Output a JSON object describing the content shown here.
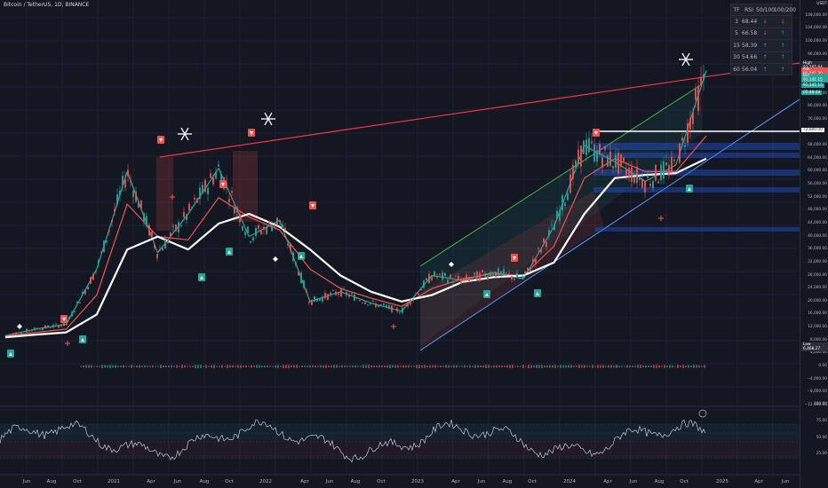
{
  "header": {
    "title": "Bitcoin / TetherUS, 1D, BINANCE"
  },
  "rsi_table": {
    "headers": [
      "TF",
      "RSI",
      "50/100",
      "100/200"
    ],
    "rows": [
      {
        "tf": "3",
        "rsi": "68.44",
        "a": "↓",
        "b": "↓"
      },
      {
        "tf": "5",
        "rsi": "66.58",
        "a": "↓",
        "b": "↑"
      },
      {
        "tf": "15",
        "rsi": "58.39",
        "a": "↑",
        "b": "↑"
      },
      {
        "tf": "30",
        "rsi": "54.66",
        "a": "↑",
        "b": "↑"
      },
      {
        "tf": "60",
        "rsi": "56.04",
        "a": "↑",
        "b": "↑"
      }
    ],
    "colors": {
      "up": "#26a69a",
      "down": "#ef5350"
    }
  },
  "price_axis": {
    "currency": "USDT",
    "labels": [
      "108,000.00",
      "104,000.00",
      "100,000.00",
      "96,000.00",
      "88,000.00",
      "84,000.00",
      "80,000.00",
      "76,000.00",
      "68,000.00",
      "64,000.00",
      "60,000.00",
      "56,000.00",
      "52,000.00",
      "48,000.00",
      "44,000.00",
      "40,000.00",
      "36,000.00",
      "32,000.00",
      "28,000.00",
      "24,000.00",
      "20,000.00",
      "16,000.00",
      "12,000.00",
      "8,000.00",
      "4,000.00",
      "0.00",
      "−4,000.00",
      "−8,000.00",
      "−12,000.00"
    ],
    "tags": {
      "high_label": "High",
      "high": "93,265.64",
      "ask_label": "Ask",
      "ask": "91,141.30",
      "bid_label": "Bid",
      "bid": "91,141.15",
      "last": "91,141.15",
      "last_sub": "05:48:44",
      "level": "72,800.00",
      "low_label": "Low",
      "low": "6,468.27"
    }
  },
  "rsi_axis": {
    "labels": [
      "100.00",
      "75.00",
      "50.00",
      "25.00"
    ]
  },
  "time_axis": {
    "labels": [
      "Jun",
      "Aug",
      "Oct",
      "2021",
      "Apr",
      "Jun",
      "Aug",
      "Oct",
      "2022",
      "Apr",
      "Jun",
      "Aug",
      "Oct",
      "2023",
      "Apr",
      "Jun",
      "Aug",
      "Oct",
      "2024",
      "Apr",
      "Jun",
      "Aug",
      "Oct",
      "2025",
      "Apr",
      "Jun"
    ]
  },
  "colors": {
    "bull": "#26a69a",
    "bear": "#ef5350",
    "ma_white": "#ffffff",
    "background": "#131722",
    "trend": "#f23645"
  },
  "chart_data": {
    "type": "line",
    "title": "Bitcoin / TetherUS, 1D, BINANCE",
    "x": [
      "Jun 2020",
      "Aug 2020",
      "Oct 2020",
      "Jan 2021",
      "Apr 2021",
      "Jun 2021",
      "Aug 2021",
      "Oct 2021",
      "Jan 2022",
      "Apr 2022",
      "Jun 2022",
      "Aug 2022",
      "Oct 2022",
      "Jan 2023",
      "Apr 2023",
      "Jun 2023",
      "Aug 2023",
      "Oct 2023",
      "Jan 2024",
      "Apr 2024",
      "Jun 2024",
      "Aug 2024",
      "Oct 2024",
      "Nov 2024"
    ],
    "series": [
      {
        "values": [
          9500,
          11500,
          13000,
          30000,
          60000,
          35000,
          47000,
          61000,
          40000,
          45000,
          20000,
          23000,
          19500,
          17000,
          28000,
          26500,
          29000,
          27000,
          43000,
          68000,
          63000,
          57000,
          62000,
          91141
        ]
      },
      {
        "values": [
          9300,
          10500,
          11500,
          22000,
          50000,
          40000,
          39000,
          52000,
          46000,
          42000,
          30000,
          24000,
          21000,
          18500,
          24000,
          27000,
          28500,
          28000,
          37000,
          58000,
          64000,
          60000,
          60000,
          71000
        ]
      },
      {
        "values": [
          9000,
          9800,
          10500,
          16000,
          36000,
          40000,
          36000,
          44000,
          47000,
          43000,
          36000,
          28000,
          23000,
          20000,
          22000,
          26000,
          27500,
          28000,
          32000,
          47000,
          58000,
          59000,
          59500,
          64000
        ]
      }
    ],
    "ylim": [
      0,
      108000
    ]
  }
}
